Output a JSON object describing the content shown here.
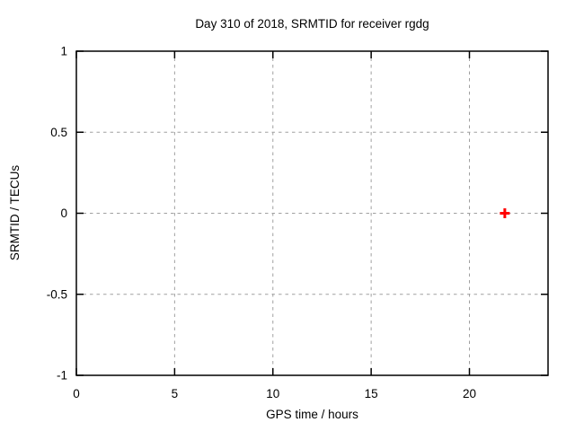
{
  "chart_data": {
    "type": "scatter",
    "title": "Day 310 of 2018, SRMTID for receiver rgdg",
    "xlabel": "GPS time / hours",
    "ylabel": "SRMTID / TECUs",
    "xlim": [
      0,
      24
    ],
    "ylim": [
      -1,
      1
    ],
    "x_ticks": [
      {
        "value": 0,
        "label": "0"
      },
      {
        "value": 5,
        "label": "5"
      },
      {
        "value": 10,
        "label": "10"
      },
      {
        "value": 15,
        "label": "15"
      },
      {
        "value": 20,
        "label": "20"
      }
    ],
    "y_ticks": [
      {
        "value": -1,
        "label": "-1"
      },
      {
        "value": -0.5,
        "label": "-0.5"
      },
      {
        "value": 0,
        "label": "0"
      },
      {
        "value": 0.5,
        "label": "0.5"
      },
      {
        "value": 1,
        "label": "1"
      }
    ],
    "grid": true,
    "grid_style": "dashed",
    "legend": "none",
    "series": [
      {
        "name": "SRMTID",
        "marker": "plus",
        "color": "#ff0000",
        "points": [
          {
            "x": 21.8,
            "y": 0.0
          }
        ]
      }
    ]
  },
  "colors": {
    "background": "#ffffff",
    "border": "#000000",
    "grid": "#a0a0a0",
    "text": "#000000",
    "marker": "#ff0000"
  }
}
